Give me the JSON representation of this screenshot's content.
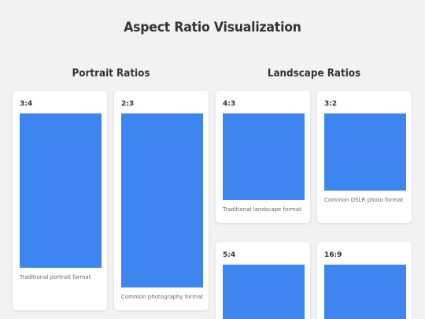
{
  "page": {
    "title": "Aspect Ratio Visualization"
  },
  "sections": {
    "portrait": {
      "heading": "Portrait Ratios",
      "cards": [
        {
          "ratio": "3:4",
          "description": "Traditional portrait format"
        },
        {
          "ratio": "2:3",
          "description": "Common photography format"
        }
      ]
    },
    "landscape": {
      "heading": "Landscape Ratios",
      "cards": [
        {
          "ratio": "4:3",
          "description": "Traditional landscape format"
        },
        {
          "ratio": "3:2",
          "description": "Common DSLR photo format"
        },
        {
          "ratio": "5:4",
          "description": ""
        },
        {
          "ratio": "16:9",
          "description": ""
        }
      ]
    }
  },
  "colors": {
    "background": "#f2f2f2",
    "card": "#ffffff",
    "ratio_box": "#3f85f0",
    "text": "#333333",
    "muted_text": "#666666"
  }
}
